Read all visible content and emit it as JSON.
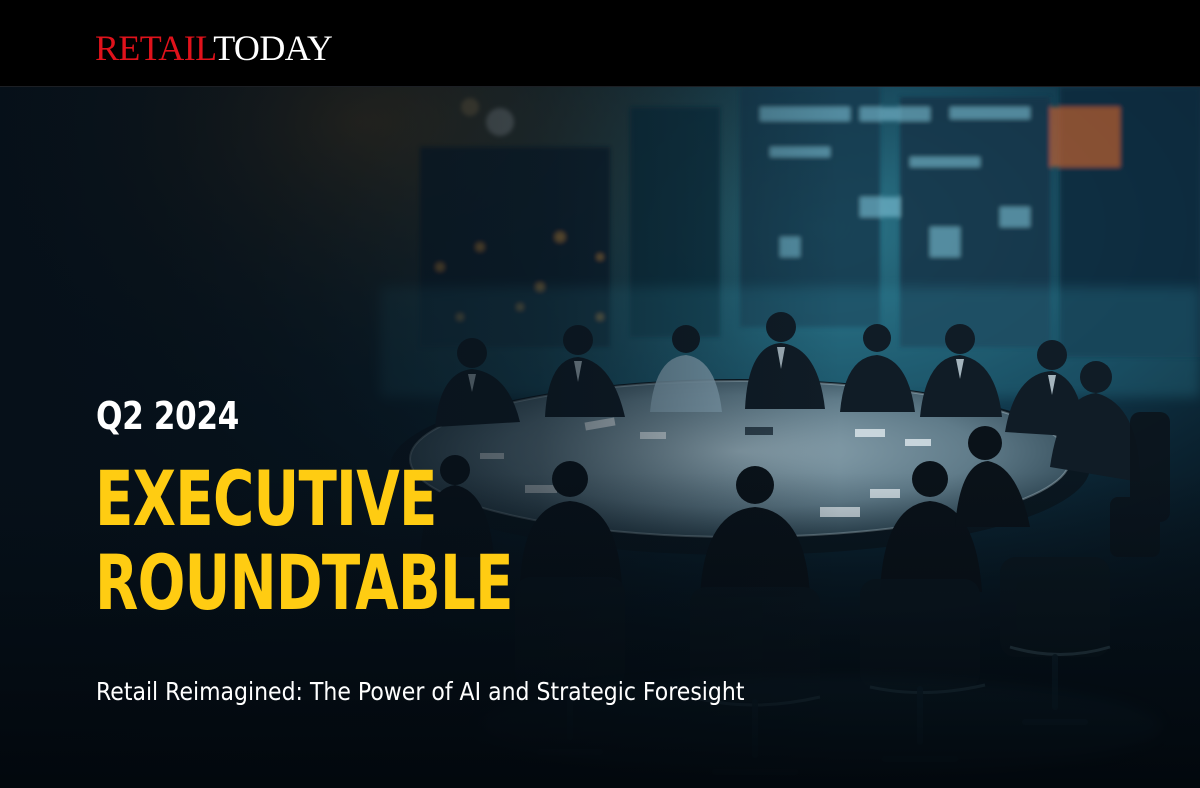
{
  "header": {
    "logo_part1": "RETAIL",
    "logo_part2": "TODAY",
    "logo_colors": {
      "part1": "#e0121b",
      "part2": "#ffffff"
    }
  },
  "hero": {
    "period": "Q2 2024",
    "headline_line1": "EXECUTIVE",
    "headline_line2": "ROUNDTABLE",
    "subtitle": "Retail Reimagined: The Power of AI and Strategic Foresight",
    "accent_color": "#ffcc12"
  }
}
